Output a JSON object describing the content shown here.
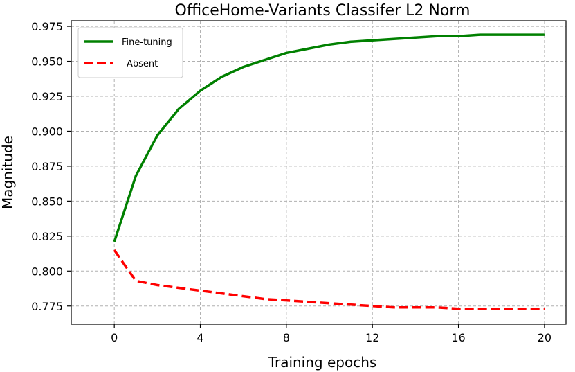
{
  "chart_data": {
    "type": "line",
    "title": "OfficeHome-Variants Classifer L2 Norm",
    "xlabel": "Training epochs",
    "ylabel": "Magnitude",
    "xlim": [
      -2,
      21
    ],
    "ylim": [
      0.762,
      0.979
    ],
    "xticks": [
      0,
      4,
      8,
      12,
      16,
      20
    ],
    "xtick_labels": [
      "0",
      "4",
      "8",
      "12",
      "16",
      "20"
    ],
    "yticks": [
      0.775,
      0.8,
      0.825,
      0.85,
      0.875,
      0.9,
      0.925,
      0.95,
      0.975
    ],
    "ytick_labels": [
      "0.775",
      "0.800",
      "0.825",
      "0.850",
      "0.875",
      "0.900",
      "0.925",
      "0.950",
      "0.975"
    ],
    "grid": true,
    "legend_position": "top-left",
    "series": [
      {
        "name": "Fine-tuning",
        "color": "#008000",
        "style": "solid",
        "x": [
          0,
          1,
          2,
          3,
          4,
          5,
          6,
          7,
          8,
          9,
          10,
          11,
          12,
          13,
          14,
          15,
          16,
          17,
          18,
          19,
          20
        ],
        "y": [
          0.821,
          0.868,
          0.897,
          0.916,
          0.929,
          0.939,
          0.946,
          0.951,
          0.956,
          0.959,
          0.962,
          0.964,
          0.965,
          0.966,
          0.967,
          0.968,
          0.968,
          0.969,
          0.969,
          0.969,
          0.969
        ]
      },
      {
        "name": "Absent",
        "color": "#ff0000",
        "style": "dashed",
        "x": [
          0,
          1,
          2,
          3,
          4,
          5,
          6,
          7,
          8,
          9,
          10,
          11,
          12,
          13,
          14,
          15,
          16,
          17,
          18,
          19,
          20
        ],
        "y": [
          0.815,
          0.793,
          0.79,
          0.788,
          0.786,
          0.784,
          0.782,
          0.78,
          0.779,
          0.778,
          0.777,
          0.776,
          0.775,
          0.774,
          0.774,
          0.774,
          0.773,
          0.773,
          0.773,
          0.773,
          0.773
        ]
      }
    ]
  }
}
